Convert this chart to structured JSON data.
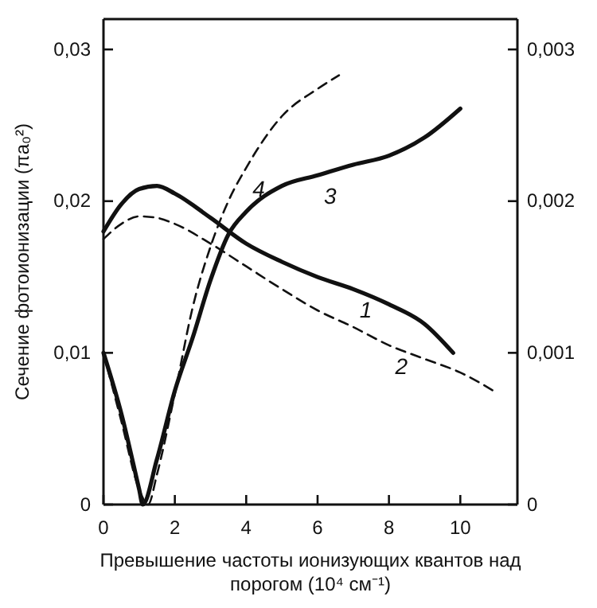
{
  "chart_data": {
    "type": "line",
    "xlabel": "Превышение частоты ионизующих квантов над порогом (10⁴ см⁻¹)",
    "ylabel": "Сечение фотоионизации (πa₀²)",
    "xlim": [
      0,
      11.6
    ],
    "xticks": [
      0,
      2,
      4,
      6,
      8,
      10
    ],
    "ylim": [
      0,
      0.032
    ],
    "yticks": [
      0,
      {
        "value": 0.01,
        "label": "0,01"
      },
      {
        "value": 0.02,
        "label": "0,02"
      },
      {
        "value": 0.03,
        "label": "0,03"
      }
    ],
    "y2lim": [
      0,
      0.0032
    ],
    "y2ticks": [
      0,
      {
        "value": 0.001,
        "label": "0,001"
      },
      {
        "value": 0.002,
        "label": "0,002"
      },
      {
        "value": 0.003,
        "label": "0,003"
      }
    ],
    "grid": false,
    "legend": false,
    "marker": "none",
    "series": [
      {
        "name": "1",
        "color": "#111111",
        "line_style": "solid",
        "x": [
          0,
          0.5,
          1,
          1.5,
          2,
          3,
          4,
          5,
          6,
          7,
          8,
          9,
          9.8
        ],
        "values": [
          0.018,
          0.0198,
          0.0208,
          0.021,
          0.0205,
          0.0189,
          0.0172,
          0.016,
          0.015,
          0.0142,
          0.0132,
          0.0119,
          0.01
        ]
      },
      {
        "name": "2",
        "color": "#111111",
        "line_style": "dashed",
        "x": [
          0,
          0.5,
          1,
          1.5,
          2,
          3,
          4,
          5,
          6,
          7,
          8,
          9,
          10,
          11
        ],
        "values": [
          0.0175,
          0.0185,
          0.019,
          0.0189,
          0.0185,
          0.0172,
          0.0157,
          0.0142,
          0.0128,
          0.0117,
          0.0105,
          0.0096,
          0.0087,
          0.0074
        ]
      },
      {
        "name": "3",
        "color": "#111111",
        "line_style": "solid",
        "axis": "y2",
        "x": [
          0,
          0.5,
          1,
          1.1,
          1.5,
          2,
          2.5,
          3,
          3.5,
          4,
          5,
          6,
          7,
          8,
          9,
          10
        ],
        "values": [
          0.001,
          0.0006,
          0.0001,
          0,
          0.0003,
          0.00075,
          0.0011,
          0.00148,
          0.00178,
          0.00193,
          0.0021,
          0.00217,
          0.00224,
          0.0023,
          0.00242,
          0.00261
        ]
      },
      {
        "name": "4",
        "color": "#111111",
        "line_style": "dashed",
        "axis": "y2",
        "x": [
          0,
          0.5,
          1,
          1.25,
          1.5,
          2,
          2.5,
          3,
          3.5,
          4,
          5,
          6,
          6.6
        ],
        "values": [
          0.001,
          0.00055,
          0.0001,
          0,
          0.0002,
          0.00073,
          0.0013,
          0.0017,
          0.002,
          0.00222,
          0.00256,
          0.00274,
          0.00283
        ]
      }
    ]
  }
}
